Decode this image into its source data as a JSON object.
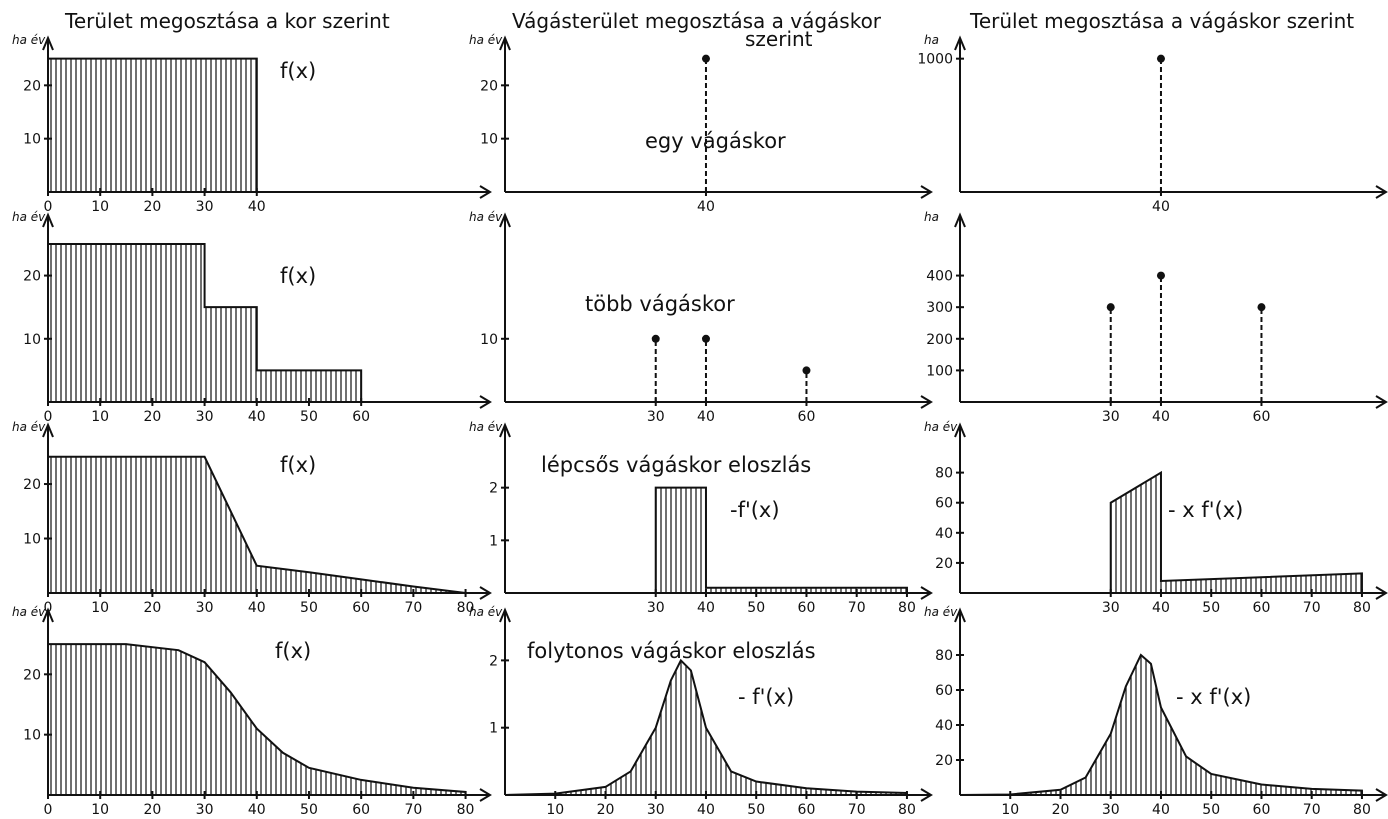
{
  "column_titles": [
    "Terület megosztása a kor szerint",
    "Vágásterület megosztása a vágáskor szerint",
    "Terület megosztása a vágáskor szerint"
  ],
  "chart_data": [
    {
      "id": "r1c1",
      "type": "area",
      "ylabel": "ha év",
      "annotation": "f(x)",
      "xticks": [
        "0",
        "10",
        "20",
        "30",
        "40"
      ],
      "yticks": [
        "10",
        "20"
      ],
      "ylim": [
        0,
        27
      ],
      "points": [
        [
          0,
          25
        ],
        [
          40,
          25
        ],
        [
          40,
          0
        ]
      ]
    },
    {
      "id": "r1c2",
      "type": "stem",
      "ylabel": "ha év",
      "annotation": "egy vágáskor",
      "xticks": [
        "40"
      ],
      "yticks": [
        "10",
        "20"
      ],
      "ylim": [
        0,
        27
      ],
      "stems": [
        [
          40,
          25
        ]
      ]
    },
    {
      "id": "r1c3",
      "type": "stem",
      "ylabel": "ha",
      "annotation": "",
      "xticks": [
        "40"
      ],
      "yticks": [
        "1000"
      ],
      "ylim": [
        0,
        1080
      ],
      "stems": [
        [
          40,
          1000
        ]
      ]
    },
    {
      "id": "r2c1",
      "type": "area",
      "ylabel": "ha év",
      "annotation": "f(x)",
      "xticks": [
        "0",
        "10",
        "20",
        "30",
        "40",
        "50",
        "60"
      ],
      "yticks": [
        "10",
        "20"
      ],
      "ylim": [
        0,
        28
      ],
      "points": [
        [
          0,
          25
        ],
        [
          30,
          25
        ],
        [
          30,
          15
        ],
        [
          40,
          15
        ],
        [
          40,
          5
        ],
        [
          60,
          5
        ],
        [
          60,
          0
        ]
      ]
    },
    {
      "id": "r2c2",
      "type": "stem",
      "ylabel": "ha év",
      "annotation": "több vágáskor",
      "xticks": [
        "30",
        "40",
        "60"
      ],
      "yticks": [
        "10"
      ],
      "ylim": [
        0,
        28
      ],
      "stems": [
        [
          30,
          10
        ],
        [
          40,
          10
        ],
        [
          60,
          5
        ]
      ]
    },
    {
      "id": "r2c3",
      "type": "stem",
      "ylabel": "ha",
      "annotation": "",
      "xticks": [
        "30",
        "40",
        "60"
      ],
      "yticks": [
        "100",
        "200",
        "300",
        "400"
      ],
      "ylim": [
        0,
        560
      ],
      "stems": [
        [
          30,
          300
        ],
        [
          40,
          400
        ],
        [
          60,
          300
        ]
      ]
    },
    {
      "id": "r3c1",
      "type": "area",
      "ylabel": "ha év",
      "annotation": "f(x)",
      "xticks": [
        "0",
        "10",
        "20",
        "30",
        "40",
        "50",
        "60",
        "70",
        "80"
      ],
      "yticks": [
        "10",
        "20"
      ],
      "ylim": [
        0,
        29
      ],
      "points": [
        [
          0,
          25
        ],
        [
          30,
          25
        ],
        [
          40,
          5
        ],
        [
          50,
          3.8
        ],
        [
          60,
          2.5
        ],
        [
          70,
          1.2
        ],
        [
          80,
          0
        ]
      ]
    },
    {
      "id": "r3c2",
      "type": "area",
      "ylabel": "ha év",
      "annotation": "lépcsős vágáskor eloszlás",
      "annotation2": "-f'(x)",
      "xticks": [
        "30",
        "40",
        "50",
        "60",
        "70",
        "80"
      ],
      "yticks": [
        "1",
        "2"
      ],
      "ylim": [
        0,
        3
      ],
      "points": [
        [
          30,
          0
        ],
        [
          30,
          2
        ],
        [
          40,
          2
        ],
        [
          40,
          0.1
        ],
        [
          80,
          0.1
        ],
        [
          80,
          0
        ]
      ]
    },
    {
      "id": "r3c3",
      "type": "area",
      "ylabel": "ha év",
      "annotation": "- x f'(x)",
      "xticks": [
        "30",
        "40",
        "50",
        "60",
        "70",
        "80"
      ],
      "yticks": [
        "20",
        "40",
        "60",
        "80"
      ],
      "ylim": [
        0,
        105
      ],
      "points": [
        [
          30,
          0
        ],
        [
          30,
          60
        ],
        [
          40,
          80
        ],
        [
          40,
          8
        ],
        [
          80,
          13
        ],
        [
          80,
          0
        ]
      ]
    },
    {
      "id": "r4c1",
      "type": "area",
      "ylabel": "ha év",
      "annotation": "f(x)",
      "xticks": [
        "0",
        "10",
        "20",
        "30",
        "40",
        "50",
        "60",
        "70",
        "80"
      ],
      "yticks": [
        "10",
        "20"
      ],
      "ylim": [
        0,
        29
      ],
      "points": [
        [
          0,
          25
        ],
        [
          15,
          25
        ],
        [
          25,
          24
        ],
        [
          30,
          22
        ],
        [
          35,
          17
        ],
        [
          40,
          11
        ],
        [
          45,
          7
        ],
        [
          50,
          4.5
        ],
        [
          60,
          2.5
        ],
        [
          70,
          1.2
        ],
        [
          80,
          0.5
        ],
        [
          80,
          0
        ]
      ]
    },
    {
      "id": "r4c2",
      "type": "area",
      "ylabel": "ha év",
      "annotation": "folytonos vágáskor eloszlás",
      "annotation2": "- f'(x)",
      "xticks": [
        "10",
        "20",
        "30",
        "40",
        "50",
        "60",
        "70",
        "80"
      ],
      "yticks": [
        "1",
        "2"
      ],
      "ylim": [
        0,
        2.6
      ],
      "points": [
        [
          0,
          0
        ],
        [
          10,
          0.02
        ],
        [
          20,
          0.12
        ],
        [
          25,
          0.35
        ],
        [
          30,
          1.0
        ],
        [
          33,
          1.7
        ],
        [
          35,
          2.0
        ],
        [
          37,
          1.85
        ],
        [
          40,
          1.0
        ],
        [
          45,
          0.35
        ],
        [
          50,
          0.2
        ],
        [
          60,
          0.1
        ],
        [
          70,
          0.05
        ],
        [
          80,
          0.03
        ],
        [
          80,
          0
        ]
      ]
    },
    {
      "id": "r4c3",
      "type": "area",
      "ylabel": "ha év",
      "annotation": "- x f'(x)",
      "xticks": [
        "10",
        "20",
        "30",
        "40",
        "50",
        "60",
        "70",
        "80"
      ],
      "yticks": [
        "20",
        "40",
        "60",
        "80"
      ],
      "ylim": [
        0,
        100
      ],
      "points": [
        [
          0,
          0
        ],
        [
          10,
          0.3
        ],
        [
          20,
          3
        ],
        [
          25,
          10
        ],
        [
          30,
          35
        ],
        [
          33,
          62
        ],
        [
          36,
          80
        ],
        [
          38,
          75
        ],
        [
          40,
          50
        ],
        [
          45,
          22
        ],
        [
          50,
          12
        ],
        [
          60,
          6
        ],
        [
          70,
          3.5
        ],
        [
          80,
          2.5
        ],
        [
          80,
          0
        ]
      ]
    }
  ]
}
